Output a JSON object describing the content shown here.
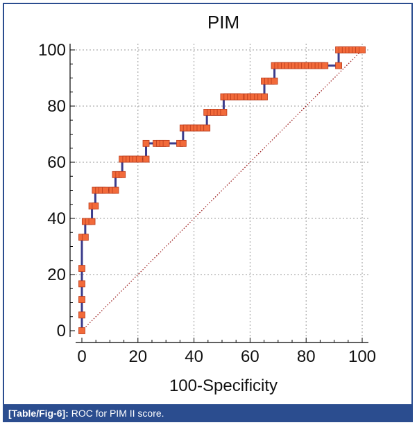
{
  "caption": {
    "label": "[Table/Fig-6]:",
    "text": "ROC for PIM II score."
  },
  "colors": {
    "curve": "#3b3c8c",
    "marker_fill": "#f26a3a",
    "marker_edge": "#b8391a",
    "diagonal": "#9c1e1e",
    "grid": "#9a9a9a",
    "frame": "#2b4d8f"
  },
  "chart_data": {
    "type": "line",
    "title": "PIM",
    "xlabel": "100-Specificity",
    "ylabel": "",
    "xlim": [
      0,
      100
    ],
    "ylim": [
      0,
      100
    ],
    "xticks": [
      0,
      20,
      40,
      60,
      80,
      100
    ],
    "yticks": [
      0,
      20,
      40,
      60,
      80,
      100
    ],
    "grid": true,
    "diagonal_reference": true,
    "series": [
      {
        "points": [
          [
            0,
            0
          ],
          [
            0,
            5.6
          ],
          [
            0,
            11.1
          ],
          [
            0,
            16.7
          ],
          [
            0,
            22.2
          ],
          [
            0,
            33.3
          ],
          [
            1.2,
            33.3
          ],
          [
            1.2,
            38.9
          ],
          [
            2.4,
            38.9
          ],
          [
            3.6,
            38.9
          ],
          [
            3.6,
            44.4
          ],
          [
            4.8,
            44.4
          ],
          [
            4.8,
            50
          ],
          [
            6,
            50
          ],
          [
            7.2,
            50
          ],
          [
            8.4,
            50
          ],
          [
            10.8,
            50
          ],
          [
            12,
            50
          ],
          [
            12,
            55.6
          ],
          [
            13.2,
            55.6
          ],
          [
            14.4,
            55.6
          ],
          [
            14.4,
            61.1
          ],
          [
            15.7,
            61.1
          ],
          [
            16.9,
            61.1
          ],
          [
            18.1,
            61.1
          ],
          [
            19.3,
            61.1
          ],
          [
            20.5,
            61.1
          ],
          [
            22.9,
            61.1
          ],
          [
            22.9,
            66.7
          ],
          [
            26.5,
            66.7
          ],
          [
            27.7,
            66.7
          ],
          [
            28.9,
            66.7
          ],
          [
            30.1,
            66.7
          ],
          [
            34.9,
            66.7
          ],
          [
            36.1,
            66.7
          ],
          [
            36.1,
            72.2
          ],
          [
            37.3,
            72.2
          ],
          [
            38.6,
            72.2
          ],
          [
            39.8,
            72.2
          ],
          [
            41,
            72.2
          ],
          [
            42.2,
            72.2
          ],
          [
            43.4,
            72.2
          ],
          [
            44.6,
            72.2
          ],
          [
            44.6,
            77.8
          ],
          [
            45.8,
            77.8
          ],
          [
            47,
            77.8
          ],
          [
            48.2,
            77.8
          ],
          [
            49.4,
            77.8
          ],
          [
            50.6,
            77.8
          ],
          [
            50.6,
            83.3
          ],
          [
            51.8,
            83.3
          ],
          [
            53,
            83.3
          ],
          [
            54.2,
            83.3
          ],
          [
            55.4,
            83.3
          ],
          [
            56.6,
            83.3
          ],
          [
            59,
            83.3
          ],
          [
            60.2,
            83.3
          ],
          [
            61.4,
            83.3
          ],
          [
            62.7,
            83.3
          ],
          [
            63.9,
            83.3
          ],
          [
            65.1,
            83.3
          ],
          [
            65.1,
            88.9
          ],
          [
            66.3,
            88.9
          ],
          [
            67.5,
            88.9
          ],
          [
            68.7,
            88.9
          ],
          [
            68.7,
            94.4
          ],
          [
            69.9,
            94.4
          ],
          [
            71.1,
            94.4
          ],
          [
            72.3,
            94.4
          ],
          [
            73.5,
            94.4
          ],
          [
            74.7,
            94.4
          ],
          [
            75.9,
            94.4
          ],
          [
            77.1,
            94.4
          ],
          [
            78.3,
            94.4
          ],
          [
            79.5,
            94.4
          ],
          [
            80.7,
            94.4
          ],
          [
            81.9,
            94.4
          ],
          [
            83.1,
            94.4
          ],
          [
            84.3,
            94.4
          ],
          [
            85.5,
            94.4
          ],
          [
            86.7,
            94.4
          ],
          [
            91.6,
            94.4
          ],
          [
            91.6,
            100
          ],
          [
            92.8,
            100
          ],
          [
            94,
            100
          ],
          [
            95.2,
            100
          ],
          [
            96.4,
            100
          ],
          [
            97.6,
            100
          ],
          [
            98.8,
            100
          ],
          [
            100,
            100
          ]
        ]
      }
    ]
  }
}
